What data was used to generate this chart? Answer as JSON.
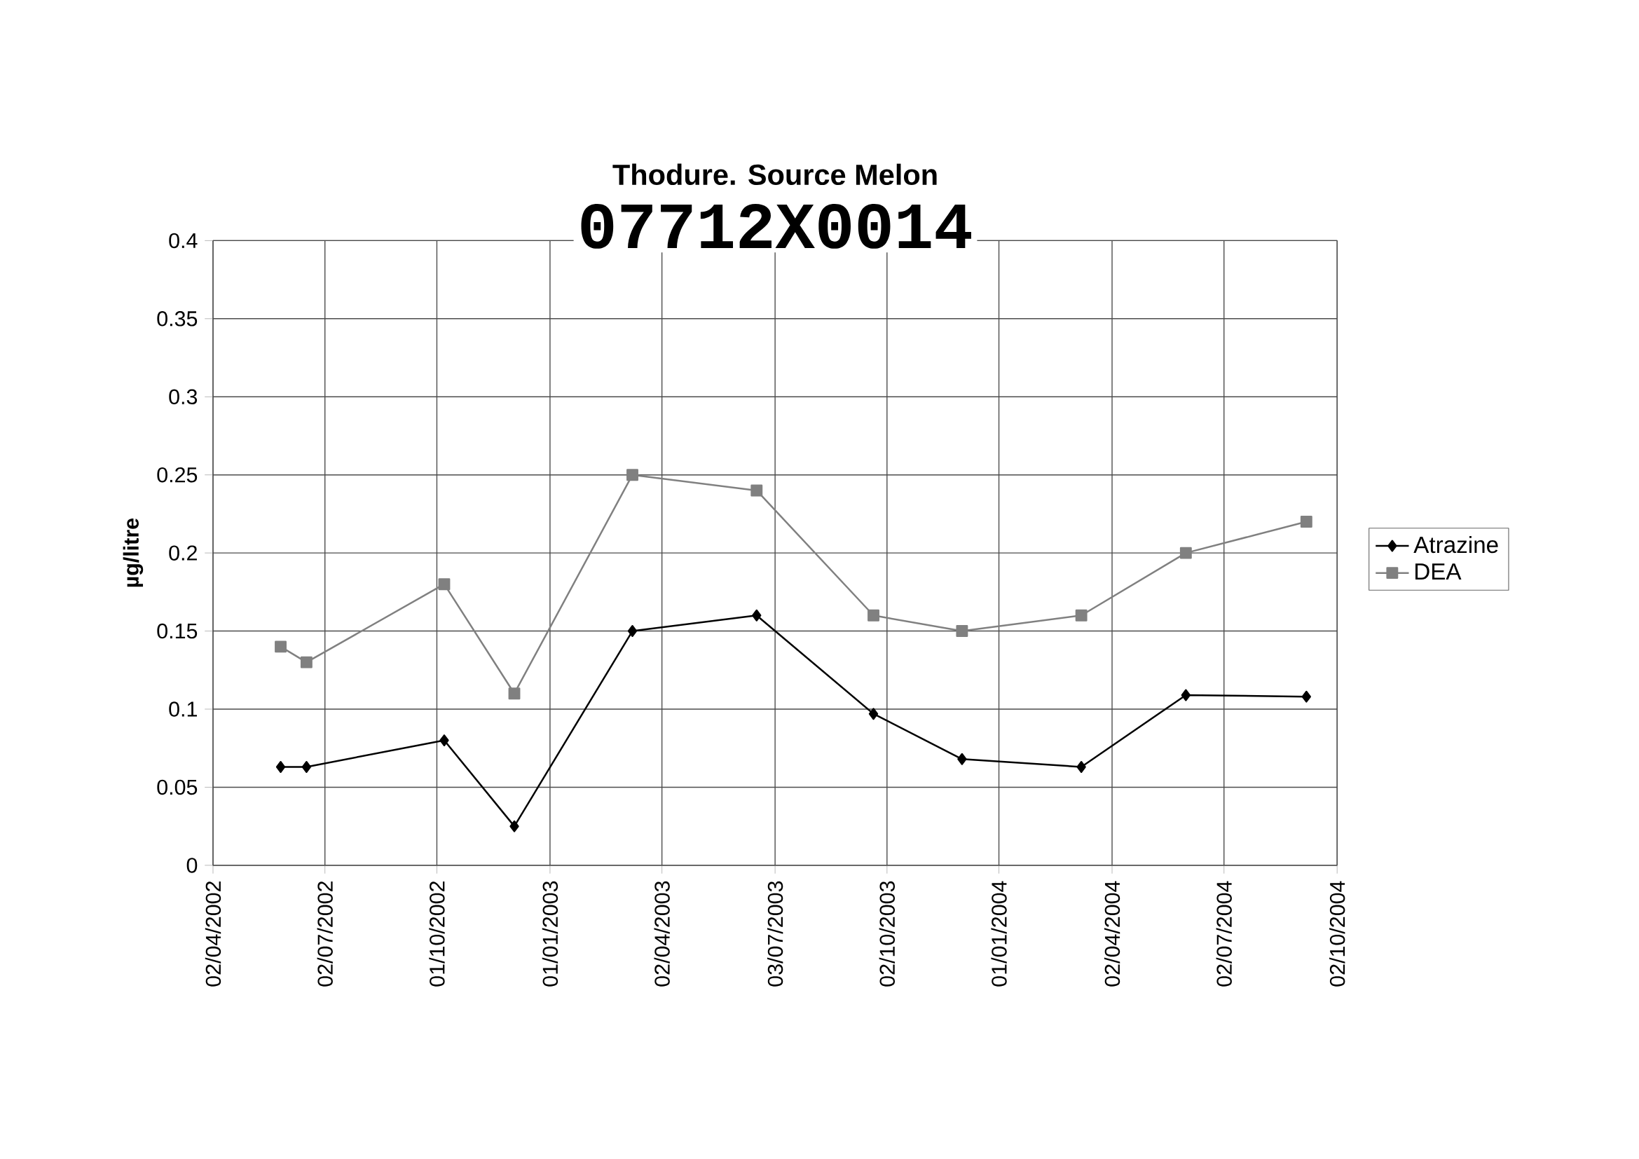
{
  "chart_data": {
    "type": "line",
    "title": "Thodure. Source Melon",
    "subtitle": "07712X0014",
    "ylabel": "µg/litre",
    "x": [
      "2002-05-27",
      "2002-06-17",
      "2002-10-07",
      "2002-12-03",
      "2003-03-09",
      "2003-06-18",
      "2003-09-21",
      "2003-12-02",
      "2004-03-08",
      "2004-06-01",
      "2004-09-07"
    ],
    "series": [
      {
        "name": "Atrazine",
        "color": "#000000",
        "marker": "diamond",
        "values": [
          0.063,
          0.063,
          0.08,
          0.025,
          0.15,
          0.16,
          0.097,
          0.068,
          0.063,
          0.109,
          0.108
        ]
      },
      {
        "name": "DEA",
        "color": "#808080",
        "marker": "square",
        "values": [
          0.14,
          0.13,
          0.18,
          0.11,
          0.25,
          0.24,
          0.16,
          0.15,
          0.16,
          0.2,
          0.22
        ]
      }
    ],
    "xlim": [
      "2002-04-02",
      "2004-10-02"
    ],
    "xticks": [
      {
        "value": "2002-04-02",
        "label": "02/04/2002"
      },
      {
        "value": "2002-07-02",
        "label": "02/07/2002"
      },
      {
        "value": "2002-10-01",
        "label": "01/10/2002"
      },
      {
        "value": "2003-01-01",
        "label": "01/01/2003"
      },
      {
        "value": "2003-04-02",
        "label": "02/04/2003"
      },
      {
        "value": "2003-07-03",
        "label": "03/07/2003"
      },
      {
        "value": "2003-10-02",
        "label": "02/10/2003"
      },
      {
        "value": "2004-01-01",
        "label": "01/01/2004"
      },
      {
        "value": "2004-04-02",
        "label": "02/04/2004"
      },
      {
        "value": "2004-07-02",
        "label": "02/07/2004"
      },
      {
        "value": "2004-10-02",
        "label": "02/10/2004"
      }
    ],
    "ylim": [
      0,
      0.4
    ],
    "yticks": [
      0,
      0.05,
      0.1,
      0.15,
      0.2,
      0.25,
      0.3,
      0.35,
      0.4
    ],
    "grid": true,
    "legend": "right",
    "line_style": "solid"
  }
}
